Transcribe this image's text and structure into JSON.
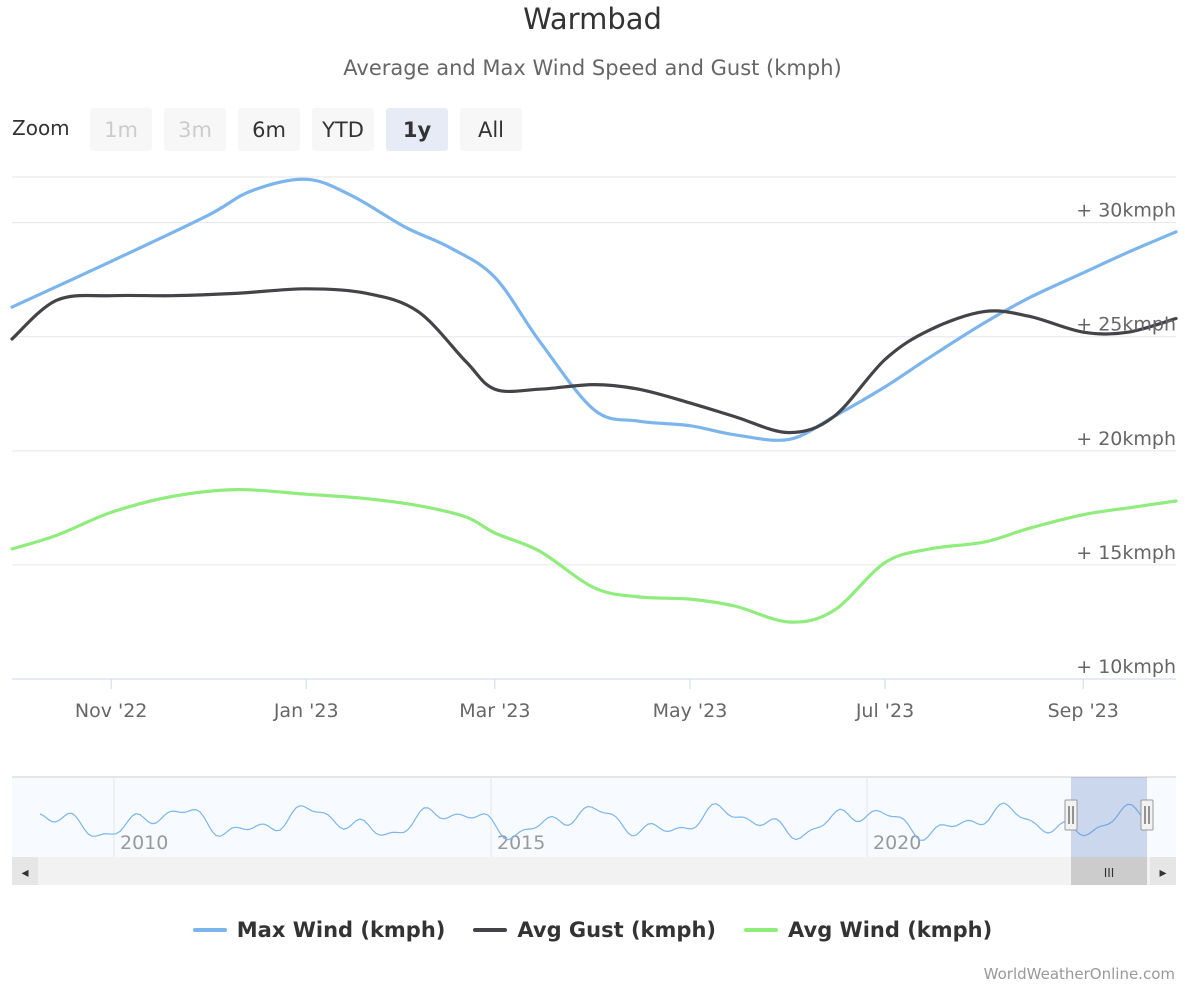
{
  "chart_data": {
    "type": "line",
    "title": "Warmbad",
    "subtitle": "Average and Max Wind Speed and Gust (kmph)",
    "ylim": [
      10,
      32
    ],
    "y_ticks": [
      10,
      15,
      20,
      25,
      30
    ],
    "y_tick_labels": [
      "+ 10kmph",
      "+ 15kmph",
      "+ 20kmph",
      "+ 25kmph",
      "+ 30kmph"
    ],
    "x_range": [
      "2022-10-01",
      "2023-09-30"
    ],
    "x_ticks": [
      {
        "date": "2022-11-01",
        "label": "Nov '22"
      },
      {
        "date": "2023-01-01",
        "label": "Jan '23"
      },
      {
        "date": "2023-03-01",
        "label": "Mar '23"
      },
      {
        "date": "2023-05-01",
        "label": "May '23"
      },
      {
        "date": "2023-07-01",
        "label": "Jul '23"
      },
      {
        "date": "2023-09-01",
        "label": "Sep '23"
      }
    ],
    "grid": true,
    "legend_position": "bottom-center",
    "series": [
      {
        "name": "Max Wind (kmph)",
        "color": "#7cb5ec",
        "points": [
          [
            "2022-10-01",
            26.3
          ],
          [
            "2022-11-01",
            28.3
          ],
          [
            "2022-12-01",
            30.3
          ],
          [
            "2022-12-15",
            31.4
          ],
          [
            "2023-01-01",
            31.9
          ],
          [
            "2023-01-15",
            31.2
          ],
          [
            "2023-02-01",
            29.8
          ],
          [
            "2023-02-15",
            28.9
          ],
          [
            "2023-03-01",
            27.6
          ],
          [
            "2023-03-15",
            24.8
          ],
          [
            "2023-04-01",
            21.8
          ],
          [
            "2023-04-15",
            21.3
          ],
          [
            "2023-05-01",
            21.1
          ],
          [
            "2023-05-15",
            20.7
          ],
          [
            "2023-06-01",
            20.5
          ],
          [
            "2023-06-15",
            21.5
          ],
          [
            "2023-07-01",
            22.8
          ],
          [
            "2023-07-15",
            24.1
          ],
          [
            "2023-08-01",
            25.6
          ],
          [
            "2023-08-15",
            26.7
          ],
          [
            "2023-09-01",
            27.8
          ],
          [
            "2023-09-15",
            28.7
          ],
          [
            "2023-09-30",
            29.6
          ]
        ]
      },
      {
        "name": "Avg Gust (kmph)",
        "color": "#434348",
        "points": [
          [
            "2022-10-01",
            24.9
          ],
          [
            "2022-10-15",
            26.6
          ],
          [
            "2022-11-01",
            26.8
          ],
          [
            "2022-11-20",
            26.8
          ],
          [
            "2022-12-10",
            26.9
          ],
          [
            "2023-01-01",
            27.1
          ],
          [
            "2023-01-20",
            26.9
          ],
          [
            "2023-02-05",
            26.1
          ],
          [
            "2023-02-20",
            23.9
          ],
          [
            "2023-03-01",
            22.7
          ],
          [
            "2023-03-15",
            22.7
          ],
          [
            "2023-04-01",
            22.9
          ],
          [
            "2023-04-15",
            22.7
          ],
          [
            "2023-05-01",
            22.1
          ],
          [
            "2023-05-15",
            21.5
          ],
          [
            "2023-06-01",
            20.8
          ],
          [
            "2023-06-15",
            21.5
          ],
          [
            "2023-07-01",
            24.0
          ],
          [
            "2023-07-15",
            25.3
          ],
          [
            "2023-08-01",
            26.1
          ],
          [
            "2023-08-15",
            25.9
          ],
          [
            "2023-09-01",
            25.2
          ],
          [
            "2023-09-15",
            25.2
          ],
          [
            "2023-09-30",
            25.8
          ]
        ]
      },
      {
        "name": "Avg Wind (kmph)",
        "color": "#90ed7d",
        "points": [
          [
            "2022-10-01",
            15.7
          ],
          [
            "2022-10-15",
            16.3
          ],
          [
            "2022-11-01",
            17.3
          ],
          [
            "2022-11-20",
            18.0
          ],
          [
            "2022-12-10",
            18.3
          ],
          [
            "2023-01-01",
            18.1
          ],
          [
            "2023-01-20",
            17.9
          ],
          [
            "2023-02-05",
            17.6
          ],
          [
            "2023-02-20",
            17.1
          ],
          [
            "2023-03-01",
            16.4
          ],
          [
            "2023-03-15",
            15.6
          ],
          [
            "2023-04-01",
            14.0
          ],
          [
            "2023-04-15",
            13.6
          ],
          [
            "2023-05-01",
            13.5
          ],
          [
            "2023-05-15",
            13.2
          ],
          [
            "2023-06-01",
            12.5
          ],
          [
            "2023-06-15",
            13.0
          ],
          [
            "2023-07-01",
            15.1
          ],
          [
            "2023-07-15",
            15.7
          ],
          [
            "2023-08-01",
            16.0
          ],
          [
            "2023-08-15",
            16.6
          ],
          [
            "2023-09-01",
            17.2
          ],
          [
            "2023-09-15",
            17.5
          ],
          [
            "2023-09-30",
            17.8
          ]
        ]
      }
    ]
  },
  "zoom": {
    "label": "Zoom",
    "buttons": [
      {
        "label": "1m",
        "state": "disabled"
      },
      {
        "label": "3m",
        "state": "disabled"
      },
      {
        "label": "6m",
        "state": "normal"
      },
      {
        "label": "YTD",
        "state": "normal"
      },
      {
        "label": "1y",
        "state": "active"
      },
      {
        "label": "All",
        "state": "normal"
      }
    ]
  },
  "navigator": {
    "year_labels": [
      "2010",
      "2015",
      "2020"
    ],
    "handle_glyph": "III",
    "left_arrow_glyph": "◂",
    "right_arrow_glyph": "▸"
  },
  "legend": {
    "items": [
      {
        "label": "Max Wind (kmph)",
        "color": "#7cb5ec"
      },
      {
        "label": "Avg Gust (kmph)",
        "color": "#434348"
      },
      {
        "label": "Avg Wind (kmph)",
        "color": "#90ed7d"
      }
    ]
  },
  "credits": "WorldWeatherOnline.com"
}
